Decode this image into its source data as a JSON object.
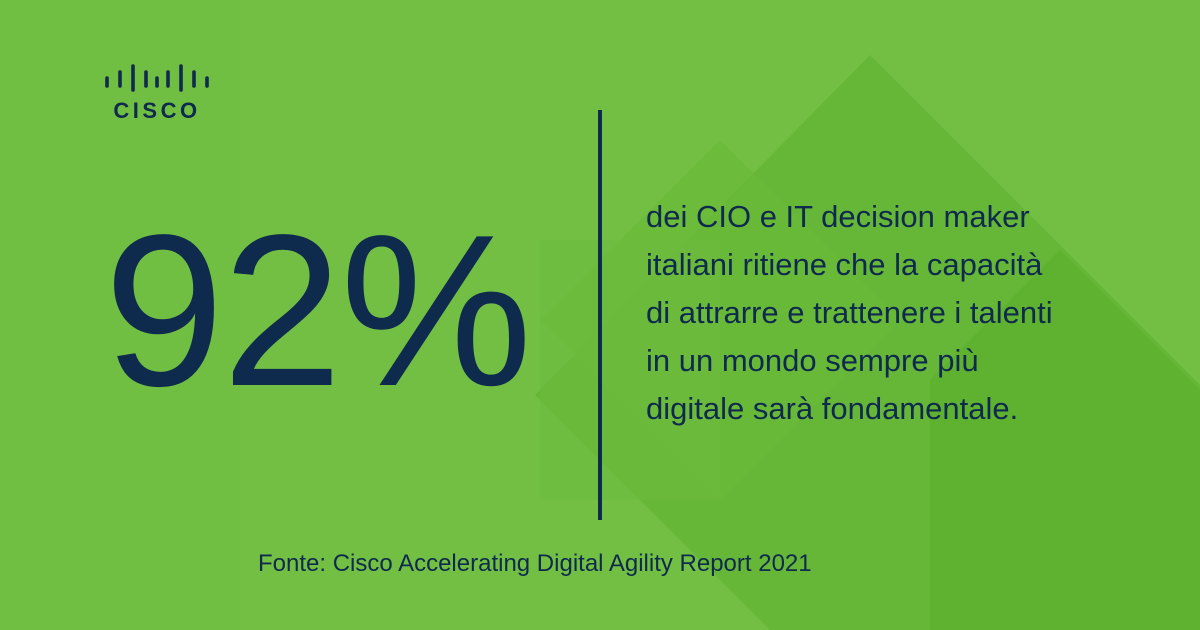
{
  "colors": {
    "background": "#72bf44",
    "shape_dark": "#5fb230",
    "shape_mid": "#67b739",
    "text": "#0e2a4d"
  },
  "logo": {
    "icon": "cisco-bridge-bars-icon",
    "wordmark": "CISCO"
  },
  "stat": {
    "value": "92%"
  },
  "description": {
    "lines": [
      "dei CIO e IT decision maker",
      "italiani ritiene che la capacità",
      "di attrarre e trattenere i talenti",
      "in un mondo sempre più",
      "digitale sarà fondamentale."
    ]
  },
  "source": {
    "text": "Fonte: Cisco Accelerating Digital Agility Report 2021"
  }
}
